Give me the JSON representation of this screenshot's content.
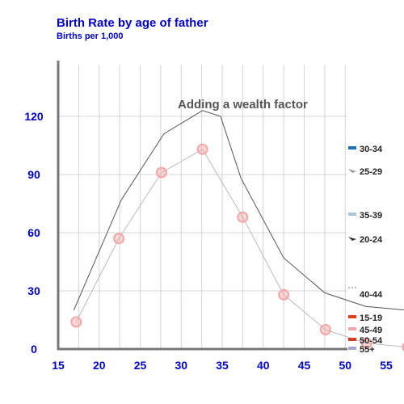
{
  "chart_data": {
    "type": "line",
    "title": "Birth Rate by age of father",
    "subtitle": "Births per 1,000",
    "xlabel": "",
    "ylabel": "",
    "xlim": [
      15,
      60
    ],
    "ylim": [
      0,
      150
    ],
    "x_ticks": [
      "15",
      "20",
      "25",
      "30",
      "35",
      "40",
      "45",
      "50",
      "55"
    ],
    "y_ticks": [
      "0",
      "30",
      "60",
      "90",
      "120"
    ],
    "grid": true,
    "annotation": "Adding a wealth factor",
    "series": [
      {
        "color": "#555555",
        "style": "line",
        "points": [
          {
            "x": 16.9,
            "y": 20
          },
          {
            "x": 22.7,
            "y": 77
          },
          {
            "x": 27.9,
            "y": 111
          },
          {
            "x": 32.6,
            "y": 123
          },
          {
            "x": 34.8,
            "y": 120
          },
          {
            "x": 37.3,
            "y": 88
          },
          {
            "x": 42.5,
            "y": 47
          },
          {
            "x": 47.5,
            "y": 29
          },
          {
            "x": 52.5,
            "y": 22
          },
          {
            "x": 57.6,
            "y": 20
          }
        ]
      },
      {
        "color": "#bbbbbb",
        "marker_color": "#f4a6a6",
        "style": "line-markers",
        "points": [
          {
            "x": 17.2,
            "y": 14
          },
          {
            "x": 22.4,
            "y": 57
          },
          {
            "x": 27.6,
            "y": 91
          },
          {
            "x": 32.6,
            "y": 103
          },
          {
            "x": 37.5,
            "y": 68
          },
          {
            "x": 42.5,
            "y": 28
          },
          {
            "x": 47.6,
            "y": 10
          },
          {
            "x": 52.6,
            "y": 3
          },
          {
            "x": 57.6,
            "y": 1
          }
        ]
      }
    ],
    "legend": [
      {
        "label": "30-34",
        "color": "#1f6fb4",
        "shape": "bar"
      },
      {
        "label": "25-29",
        "color": "#999999",
        "shape": "arrow"
      },
      {
        "label": "35-39",
        "color": "#a9c4df",
        "shape": "bar"
      },
      {
        "label": "20-24",
        "color": "#333333",
        "shape": "arrow"
      },
      {
        "label": "40-44",
        "color": "#bbbbbb",
        "shape": "dots"
      },
      {
        "label": "15-19",
        "color": "#e0401a",
        "shape": "bar"
      },
      {
        "label": "45-49",
        "color": "#f4a6a6",
        "shape": "bar"
      },
      {
        "label": "50-54",
        "color": "#d43b1f",
        "shape": "bar"
      },
      {
        "label": "55+",
        "color": "#a9a9cf",
        "shape": "bar"
      }
    ]
  }
}
